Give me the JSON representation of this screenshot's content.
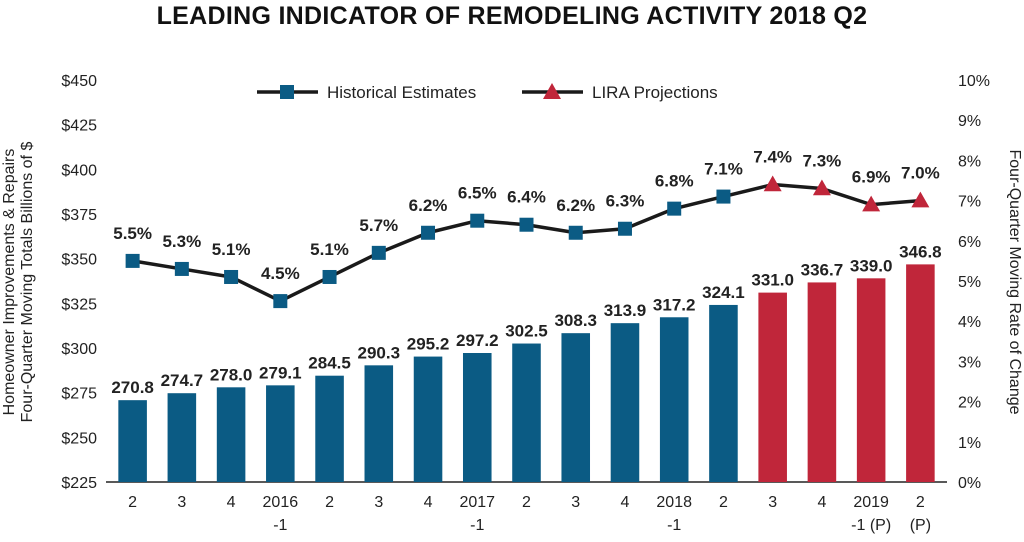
{
  "chart_data": {
    "type": "bar+line",
    "title": "LEADING INDICATOR OF REMODELING ACTIVITY 2018 Q2",
    "categories": [
      {
        "line1": "2",
        "line2": ""
      },
      {
        "line1": "3",
        "line2": ""
      },
      {
        "line1": "4",
        "line2": ""
      },
      {
        "line1": "2016",
        "line2": "-1"
      },
      {
        "line1": "2",
        "line2": ""
      },
      {
        "line1": "3",
        "line2": ""
      },
      {
        "line1": "4",
        "line2": ""
      },
      {
        "line1": "2017",
        "line2": "-1"
      },
      {
        "line1": "2",
        "line2": ""
      },
      {
        "line1": "3",
        "line2": ""
      },
      {
        "line1": "4",
        "line2": ""
      },
      {
        "line1": "2018",
        "line2": "-1"
      },
      {
        "line1": "2",
        "line2": ""
      },
      {
        "line1": "3",
        "line2": ""
      },
      {
        "line1": "4",
        "line2": ""
      },
      {
        "line1": "2019",
        "line2": "-1 (P)"
      },
      {
        "line1": "2",
        "line2": "(P)"
      }
    ],
    "bars": {
      "values": [
        270.8,
        274.7,
        278.0,
        279.1,
        284.5,
        290.3,
        295.2,
        297.2,
        302.5,
        308.3,
        313.9,
        317.2,
        324.1,
        331.0,
        336.7,
        339.0,
        346.8
      ],
      "labels": [
        "270.8",
        "274.7",
        "278.0",
        "279.1",
        "284.5",
        "290.3",
        "295.2",
        "297.2",
        "302.5",
        "308.3",
        "313.9",
        "317.2",
        "324.1",
        "331.0",
        "336.7",
        "339.0",
        "346.8"
      ],
      "projected": [
        false,
        false,
        false,
        false,
        false,
        false,
        false,
        false,
        false,
        false,
        false,
        false,
        false,
        true,
        true,
        true,
        true
      ]
    },
    "line": {
      "values": [
        5.5,
        5.3,
        5.1,
        4.5,
        5.1,
        5.7,
        6.2,
        6.5,
        6.4,
        6.2,
        6.3,
        6.8,
        7.1,
        7.4,
        7.3,
        6.9,
        7.0
      ],
      "labels": [
        "5.5%",
        "5.3%",
        "5.1%",
        "4.5%",
        "5.1%",
        "5.7%",
        "6.2%",
        "6.5%",
        "6.4%",
        "6.2%",
        "6.3%",
        "6.8%",
        "7.1%",
        "7.4%",
        "7.3%",
        "6.9%",
        "7.0%"
      ]
    },
    "y_left": {
      "label_line1": "Homeowner Improvements & Repairs",
      "label_line2": "Four-Quarter Moving Totals Billions of $",
      "ylim": [
        225,
        450
      ],
      "ticks": [
        "$225",
        "$250",
        "$275",
        "$300",
        "$325",
        "$350",
        "$375",
        "$400",
        "$425",
        "$450"
      ]
    },
    "y_right": {
      "label": "Four-Quarter Moving Rate of Change",
      "ylim": [
        0,
        10
      ],
      "ticks": [
        "0%",
        "1%",
        "2%",
        "3%",
        "4%",
        "5%",
        "6%",
        "7%",
        "8%",
        "9%",
        "10%"
      ]
    },
    "legend": {
      "placement": "top-center",
      "historical": "Historical Estimates",
      "projection": "LIRA Projections"
    },
    "colors": {
      "historical": "#0b5b84",
      "projection": "#c0263a",
      "line": "#1a1a1a"
    }
  }
}
